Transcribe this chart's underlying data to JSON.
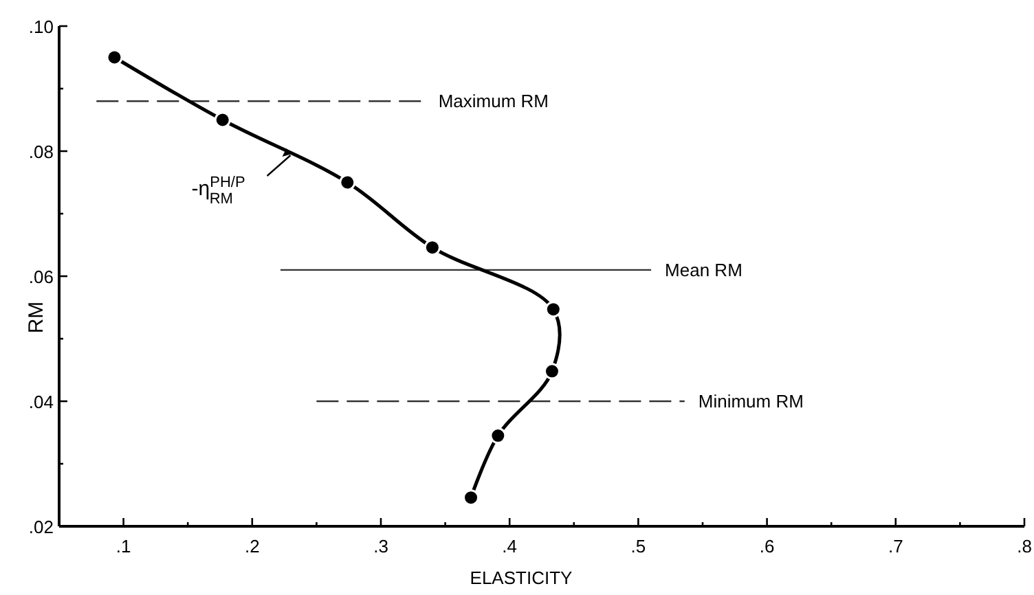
{
  "chart_data": {
    "type": "line",
    "xlabel": "ELASTICITY",
    "ylabel": "RM",
    "x": [
      0.093,
      0.177,
      0.274,
      0.34,
      0.434,
      0.433,
      0.391,
      0.37
    ],
    "values": [
      0.095,
      0.085,
      0.075,
      0.0646,
      0.0547,
      0.0448,
      0.0345,
      0.0246
    ],
    "color": "#000000",
    "marker": "circle",
    "line_style": "solid",
    "xlim": [
      0.05,
      0.8
    ],
    "xticks": [
      {
        "value": 0.1,
        "label": ".1"
      },
      {
        "value": 0.15,
        "label": null
      },
      {
        "value": 0.2,
        "label": ".2"
      },
      {
        "value": 0.25,
        "label": null
      },
      {
        "value": 0.3,
        "label": ".3"
      },
      {
        "value": 0.35,
        "label": null
      },
      {
        "value": 0.4,
        "label": ".4"
      },
      {
        "value": 0.45,
        "label": null
      },
      {
        "value": 0.5,
        "label": ".5"
      },
      {
        "value": 0.55,
        "label": null
      },
      {
        "value": 0.6,
        "label": ".6"
      },
      {
        "value": 0.65,
        "label": null
      },
      {
        "value": 0.7,
        "label": ".7"
      },
      {
        "value": 0.75,
        "label": null
      },
      {
        "value": 0.8,
        "label": ".8"
      }
    ],
    "ylim": [
      0.02,
      0.1
    ],
    "yticks": [
      {
        "value": 0.02,
        "label": ".02"
      },
      {
        "value": 0.03,
        "label": null
      },
      {
        "value": 0.04,
        "label": ".04"
      },
      {
        "value": 0.05,
        "label": null
      },
      {
        "value": 0.06,
        "label": ".06"
      },
      {
        "value": 0.07,
        "label": null
      },
      {
        "value": 0.08,
        "label": ".08"
      },
      {
        "value": 0.09,
        "label": null
      },
      {
        "value": 0.1,
        "label": ".10"
      }
    ],
    "ref_lines": [
      {
        "axis": "y",
        "value": 0.088,
        "label": "Maximum RM",
        "line_style": "dashed"
      },
      {
        "axis": "y",
        "value": 0.061,
        "label": "Mean RM",
        "line_style": "solid"
      },
      {
        "axis": "y",
        "value": 0.04,
        "label": "Minimum RM",
        "line_style": "dashed"
      }
    ],
    "annotations": [
      {
        "text": "-η$^{PH/P}$$_{RM}$",
        "x": 0.233,
        "y": 0.08
      }
    ],
    "grid": false
  }
}
